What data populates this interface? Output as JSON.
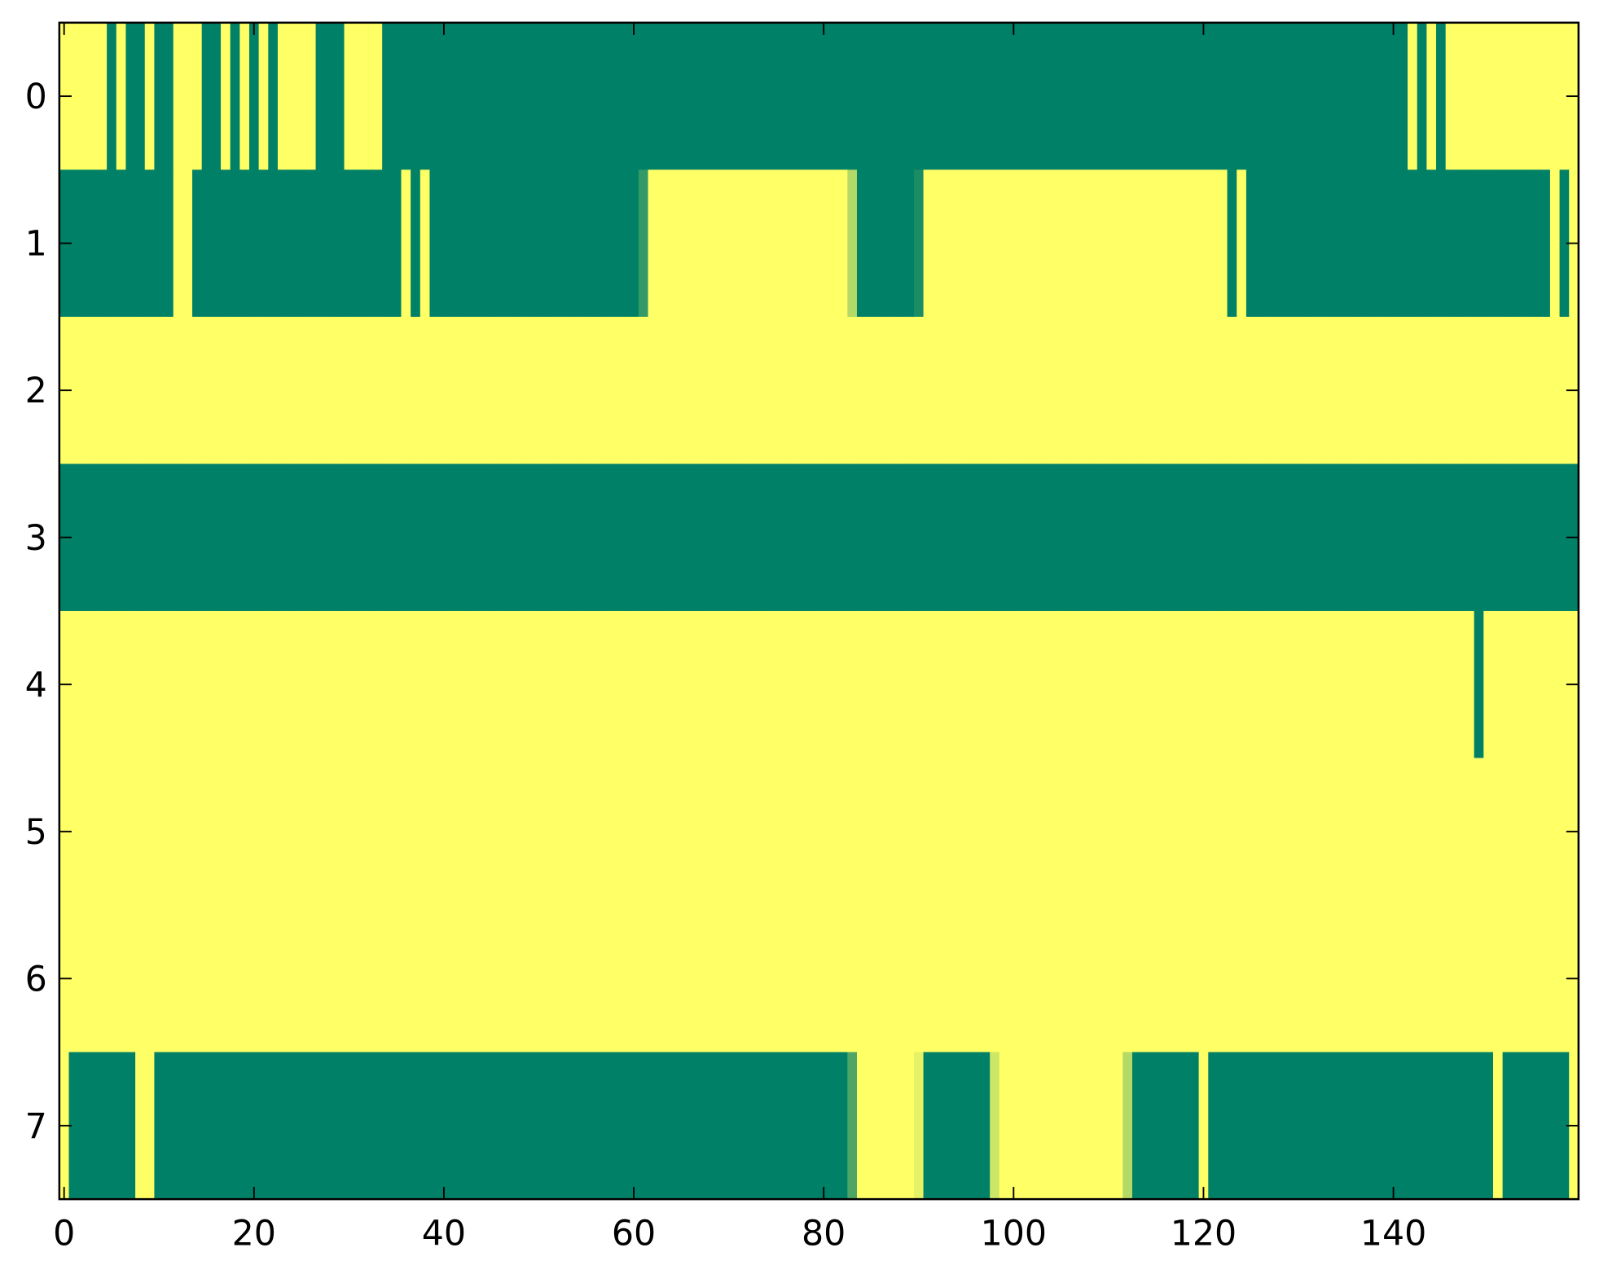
{
  "chart_data": {
    "type": "heatmap",
    "cmap": "summer",
    "clim": [
      0,
      1
    ],
    "xlim": [
      -0.5,
      159.5
    ],
    "ylim": [
      7.5,
      -0.5
    ],
    "xticks": [
      0,
      20,
      40,
      60,
      80,
      100,
      120,
      140
    ],
    "yticks": [
      0,
      1,
      2,
      3,
      4,
      5,
      6,
      7
    ],
    "values": [
      [
        1,
        1,
        1,
        1,
        1,
        0,
        1,
        0,
        0,
        1,
        0,
        0,
        1,
        1,
        1,
        0,
        0,
        1,
        0,
        1,
        0,
        1,
        0,
        1,
        1,
        1,
        1,
        0,
        0,
        0,
        1,
        1,
        1,
        1,
        0,
        0,
        0,
        0,
        0,
        0,
        0,
        0,
        0,
        0,
        0,
        0,
        0,
        0,
        0,
        0,
        0,
        0,
        0,
        0,
        0,
        0,
        0,
        0,
        0,
        0,
        0,
        0,
        0,
        0,
        0,
        0,
        0,
        0,
        0,
        0,
        0,
        0,
        0,
        0,
        0,
        0,
        0,
        0,
        0,
        0,
        0,
        0,
        0,
        0,
        0,
        0,
        0,
        0,
        0,
        0,
        0,
        0,
        0,
        0,
        0,
        0,
        0,
        0,
        0,
        0,
        0,
        0,
        0,
        0,
        0,
        0,
        0,
        0,
        0,
        0,
        0,
        0,
        0,
        0,
        0,
        0,
        0,
        0,
        0,
        0,
        0,
        0,
        0,
        0,
        0,
        0,
        0,
        0,
        0,
        0,
        0,
        0,
        0,
        0,
        0,
        0,
        0,
        0,
        0,
        0,
        0,
        0,
        1,
        0,
        1,
        0,
        1,
        1,
        1,
        1,
        1,
        1,
        1,
        1,
        1,
        1,
        1,
        1,
        1,
        1
      ],
      [
        0,
        0,
        0,
        0,
        0,
        0,
        0,
        0,
        0,
        0,
        0,
        0,
        1,
        1,
        0,
        0,
        0,
        0,
        0,
        0,
        0,
        0,
        0,
        0,
        0,
        0,
        0,
        0,
        0,
        0,
        0,
        0,
        0,
        0,
        0,
        0,
        1,
        0,
        1,
        0,
        0,
        0,
        0,
        0,
        0,
        0,
        0,
        0,
        0,
        0,
        0,
        0,
        0,
        0,
        0,
        0,
        0,
        0,
        0,
        0,
        0,
        0.2,
        1,
        1,
        1,
        1,
        1,
        1,
        1,
        1,
        1,
        1,
        1,
        1,
        1,
        1,
        1,
        1,
        1,
        1,
        1,
        1,
        1,
        0.7,
        0,
        0,
        0,
        0,
        0,
        0,
        0.1,
        1,
        1,
        1,
        1,
        1,
        1,
        1,
        1,
        1,
        1,
        1,
        1,
        1,
        1,
        1,
        1,
        1,
        1,
        1,
        1,
        1,
        1,
        1,
        1,
        1,
        1,
        1,
        1,
        1,
        1,
        1,
        1,
        0,
        1,
        0,
        0,
        0,
        0,
        0,
        0,
        0,
        0,
        0,
        0,
        0,
        0,
        0,
        0,
        0,
        0,
        0,
        0,
        0,
        0,
        0,
        0,
        0,
        0,
        0,
        0,
        0,
        0,
        0,
        0,
        0,
        0,
        1,
        0,
        1
      ],
      [
        1,
        1,
        1,
        1,
        1,
        1,
        1,
        1,
        1,
        1,
        1,
        1,
        1,
        1,
        1,
        1,
        1,
        1,
        1,
        1,
        1,
        1,
        1,
        1,
        1,
        1,
        1,
        1,
        1,
        1,
        1,
        1,
        1,
        1,
        1,
        1,
        1,
        1,
        1,
        1,
        1,
        1,
        1,
        1,
        1,
        1,
        1,
        1,
        1,
        1,
        1,
        1,
        1,
        1,
        1,
        1,
        1,
        1,
        1,
        1,
        1,
        1,
        1,
        1,
        1,
        1,
        1,
        1,
        1,
        1,
        1,
        1,
        1,
        1,
        1,
        1,
        1,
        1,
        1,
        1,
        1,
        1,
        1,
        1,
        1,
        1,
        1,
        1,
        1,
        1,
        1,
        1,
        1,
        1,
        1,
        1,
        1,
        1,
        1,
        1,
        1,
        1,
        1,
        1,
        1,
        1,
        1,
        1,
        1,
        1,
        1,
        1,
        1,
        1,
        1,
        1,
        1,
        1,
        1,
        1,
        1,
        1,
        1,
        1,
        1,
        1,
        1,
        1,
        1,
        1,
        1,
        1,
        1,
        1,
        1,
        1,
        1,
        1,
        1,
        1,
        1,
        1,
        1,
        1,
        1,
        1,
        1,
        1,
        1,
        1,
        1,
        1,
        1,
        1,
        1,
        1,
        1,
        1,
        1,
        1
      ],
      [
        0,
        0,
        0,
        0,
        0,
        0,
        0,
        0,
        0,
        0,
        0,
        0,
        0,
        0,
        0,
        0,
        0,
        0,
        0,
        0,
        0,
        0,
        0,
        0,
        0,
        0,
        0,
        0,
        0,
        0,
        0,
        0,
        0,
        0,
        0,
        0,
        0,
        0,
        0,
        0,
        0,
        0,
        0,
        0,
        0,
        0,
        0,
        0,
        0,
        0,
        0,
        0,
        0,
        0,
        0,
        0,
        0,
        0,
        0,
        0,
        0,
        0,
        0,
        0,
        0,
        0,
        0,
        0,
        0,
        0,
        0,
        0,
        0,
        0,
        0,
        0,
        0,
        0,
        0,
        0,
        0,
        0,
        0,
        0,
        0,
        0,
        0,
        0,
        0,
        0,
        0,
        0,
        0,
        0,
        0,
        0,
        0,
        0,
        0,
        0,
        0,
        0,
        0,
        0,
        0,
        0,
        0,
        0,
        0,
        0,
        0,
        0,
        0,
        0,
        0,
        0,
        0,
        0,
        0,
        0,
        0,
        0,
        0,
        0,
        0,
        0,
        0,
        0,
        0,
        0,
        0,
        0,
        0,
        0,
        0,
        0,
        0,
        0,
        0,
        0,
        0,
        0,
        0,
        0,
        0,
        0,
        0,
        0,
        0,
        0,
        0,
        0,
        0,
        0,
        0,
        0,
        0,
        0,
        0,
        0
      ],
      [
        1,
        1,
        1,
        1,
        1,
        1,
        1,
        1,
        1,
        1,
        1,
        1,
        1,
        1,
        1,
        1,
        1,
        1,
        1,
        1,
        1,
        1,
        1,
        1,
        1,
        1,
        1,
        1,
        1,
        1,
        1,
        1,
        1,
        1,
        1,
        1,
        1,
        1,
        1,
        1,
        1,
        1,
        1,
        1,
        1,
        1,
        1,
        1,
        1,
        1,
        1,
        1,
        1,
        1,
        1,
        1,
        1,
        1,
        1,
        1,
        1,
        1,
        1,
        1,
        1,
        1,
        1,
        1,
        1,
        1,
        1,
        1,
        1,
        1,
        1,
        1,
        1,
        1,
        1,
        1,
        1,
        1,
        1,
        1,
        1,
        1,
        1,
        1,
        1,
        1,
        1,
        1,
        1,
        1,
        1,
        1,
        1,
        1,
        1,
        1,
        1,
        1,
        1,
        1,
        1,
        1,
        1,
        1,
        1,
        1,
        1,
        1,
        1,
        1,
        1,
        1,
        1,
        1,
        1,
        1,
        1,
        1,
        1,
        1,
        1,
        1,
        1,
        1,
        1,
        1,
        1,
        1,
        1,
        1,
        1,
        1,
        1,
        1,
        1,
        1,
        1,
        1,
        1,
        1,
        1,
        1,
        1,
        1,
        1,
        0,
        1,
        1,
        1,
        1,
        1,
        1,
        1,
        1,
        1,
        1
      ],
      [
        1,
        1,
        1,
        1,
        1,
        1,
        1,
        1,
        1,
        1,
        1,
        1,
        1,
        1,
        1,
        1,
        1,
        1,
        1,
        1,
        1,
        1,
        1,
        1,
        1,
        1,
        1,
        1,
        1,
        1,
        1,
        1,
        1,
        1,
        1,
        1,
        1,
        1,
        1,
        1,
        1,
        1,
        1,
        1,
        1,
        1,
        1,
        1,
        1,
        1,
        1,
        1,
        1,
        1,
        1,
        1,
        1,
        1,
        1,
        1,
        1,
        1,
        1,
        1,
        1,
        1,
        1,
        1,
        1,
        1,
        1,
        1,
        1,
        1,
        1,
        1,
        1,
        1,
        1,
        1,
        1,
        1,
        1,
        1,
        1,
        1,
        1,
        1,
        1,
        1,
        1,
        1,
        1,
        1,
        1,
        1,
        1,
        1,
        1,
        1,
        1,
        1,
        1,
        1,
        1,
        1,
        1,
        1,
        1,
        1,
        1,
        1,
        1,
        1,
        1,
        1,
        1,
        1,
        1,
        1,
        1,
        1,
        1,
        1,
        1,
        1,
        1,
        1,
        1,
        1,
        1,
        1,
        1,
        1,
        1,
        1,
        1,
        1,
        1,
        1,
        1,
        1,
        1,
        1,
        1,
        1,
        1,
        1,
        1,
        1,
        1,
        1,
        1,
        1,
        1,
        1,
        1,
        1,
        1,
        1
      ],
      [
        1,
        1,
        1,
        1,
        1,
        1,
        1,
        1,
        1,
        1,
        1,
        1,
        1,
        1,
        1,
        1,
        1,
        1,
        1,
        1,
        1,
        1,
        1,
        1,
        1,
        1,
        1,
        1,
        1,
        1,
        1,
        1,
        1,
        1,
        1,
        1,
        1,
        1,
        1,
        1,
        1,
        1,
        1,
        1,
        1,
        1,
        1,
        1,
        1,
        1,
        1,
        1,
        1,
        1,
        1,
        1,
        1,
        1,
        1,
        1,
        1,
        1,
        1,
        1,
        1,
        1,
        1,
        1,
        1,
        1,
        1,
        1,
        1,
        1,
        1,
        1,
        1,
        1,
        1,
        1,
        1,
        1,
        1,
        1,
        1,
        1,
        1,
        1,
        1,
        1,
        1,
        1,
        1,
        1,
        1,
        1,
        1,
        1,
        1,
        1,
        1,
        1,
        1,
        1,
        1,
        1,
        1,
        1,
        1,
        1,
        1,
        1,
        1,
        1,
        1,
        1,
        1,
        1,
        1,
        1,
        1,
        1,
        1,
        1,
        1,
        1,
        1,
        1,
        1,
        1,
        1,
        1,
        1,
        1,
        1,
        1,
        1,
        1,
        1,
        1,
        1,
        1,
        1,
        1,
        1,
        1,
        1,
        1,
        1,
        1,
        1,
        1,
        1,
        1,
        1,
        1,
        1,
        1,
        1,
        1
      ],
      [
        1,
        0,
        0,
        0,
        0,
        0,
        0,
        0,
        1,
        1,
        0,
        0,
        0,
        0,
        0,
        0,
        0,
        0,
        0,
        0,
        0,
        0,
        0,
        0,
        0,
        0,
        0,
        0,
        0,
        0,
        0,
        0,
        0,
        0,
        0,
        0,
        0,
        0,
        0,
        0,
        0,
        0,
        0,
        0,
        0,
        0,
        0,
        0,
        0,
        0,
        0,
        0,
        0,
        0,
        0,
        0,
        0,
        0,
        0,
        0,
        0,
        0,
        0,
        0,
        0,
        0,
        0,
        0,
        0,
        0,
        0,
        0,
        0,
        0,
        0,
        0,
        0,
        0,
        0,
        0,
        0,
        0,
        0,
        0.3,
        1,
        1,
        1,
        1,
        1,
        1,
        0.9,
        0,
        0,
        0,
        0,
        0,
        0,
        0,
        0.8,
        1,
        1,
        1,
        1,
        1,
        1,
        1,
        1,
        1,
        1,
        1,
        1,
        1,
        0.7,
        0,
        0,
        0,
        0,
        0,
        0,
        0,
        1,
        0,
        0,
        0,
        0,
        0,
        0,
        0,
        0,
        0,
        0,
        0,
        0,
        0,
        0,
        0,
        0,
        0,
        0,
        0,
        0,
        0,
        0,
        0,
        0,
        0,
        0,
        0,
        0,
        0,
        0,
        1,
        0,
        0,
        0,
        0,
        0,
        0,
        0,
        1
      ]
    ]
  }
}
